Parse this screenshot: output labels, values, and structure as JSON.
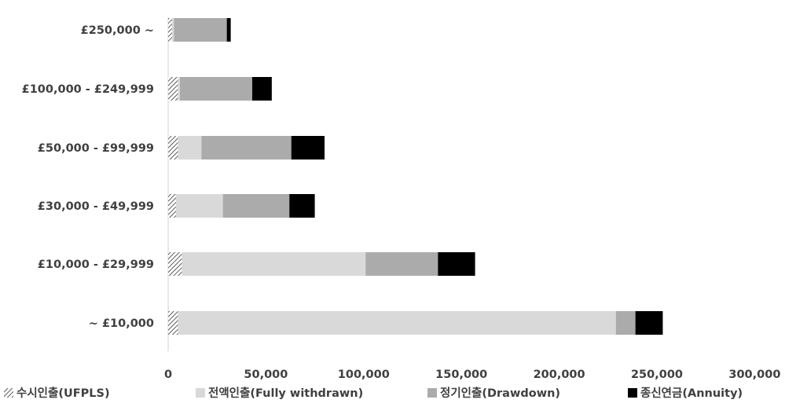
{
  "chart_data": {
    "type": "bar",
    "orientation": "horizontal",
    "stacked": true,
    "categories": [
      "£250,000 ~",
      "£100,000 - £249,999",
      "£50,000 - £99,999",
      "£30,000 - £49,999",
      "£10,000 - £29,999",
      "~ £10,000"
    ],
    "series": [
      {
        "name": "수시인출(UFPLS)",
        "color": "#ffffff",
        "pattern": "diagonal-hatch",
        "values": [
          2000,
          5000,
          5000,
          4000,
          7000,
          5000
        ]
      },
      {
        "name": "전액인출(Fully withdrawn)",
        "color": "#d9d9d9",
        "values": [
          1000,
          1000,
          12000,
          24000,
          94000,
          224000
        ]
      },
      {
        "name": "정기인출(Drawdown)",
        "color": "#ababab",
        "values": [
          27000,
          37000,
          46000,
          34000,
          37000,
          10000
        ]
      },
      {
        "name": "종신연금(Annuity)",
        "color": "#000000",
        "values": [
          2000,
          10000,
          17000,
          13000,
          19000,
          14000
        ]
      }
    ],
    "xlim": [
      0,
      300000
    ],
    "xticks": [
      "0",
      "50,000",
      "100,000",
      "150,000",
      "200,000",
      "250,000",
      "300,000"
    ],
    "xtick_values": [
      0,
      50000,
      100000,
      150000,
      200000,
      250000,
      300000
    ],
    "grid": false,
    "legend_position": "bottom",
    "title": "",
    "xlabel": "",
    "ylabel": ""
  }
}
